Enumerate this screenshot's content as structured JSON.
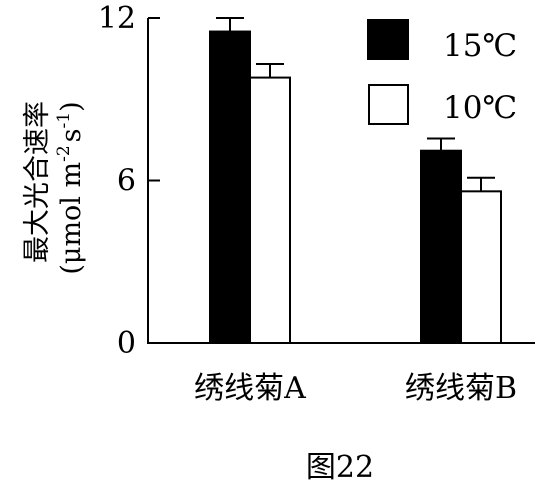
{
  "figure": {
    "caption": "图22"
  },
  "chart_data": {
    "type": "bar",
    "categories": [
      "绣线菊A",
      "绣线菊B"
    ],
    "series": [
      {
        "name": "15℃",
        "values": [
          11.5,
          7.1
        ],
        "errors": [
          0.5,
          0.45
        ],
        "color": "#000000"
      },
      {
        "name": "10℃",
        "values": [
          9.8,
          5.6
        ],
        "errors": [
          0.5,
          0.5
        ],
        "color": "#ffffff"
      }
    ],
    "ylabel": "最大光合速率",
    "yunit_prefix": "(μmol m",
    "yunit_sup1": "-2",
    "yunit_mid": "s",
    "yunit_sup2": "-1",
    "yunit_suffix": ")",
    "ylim": [
      0,
      12
    ],
    "yticks": [
      "0",
      "6",
      "12"
    ],
    "legend_position": "top-right",
    "grid": false
  }
}
